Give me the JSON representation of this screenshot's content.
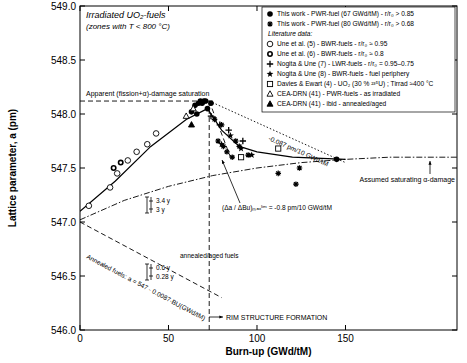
{
  "chart_data": {
    "type": "scatter",
    "x_label": "Burn-up (GWd/tM)",
    "y_label": "Lattice parameter,  a   (pm)",
    "xlim": [
      0,
      213
    ],
    "ylim": [
      546,
      549
    ],
    "xticks": [
      0,
      50,
      100,
      150
    ],
    "yticks": [
      {
        "value": 546,
        "label": "546.0"
      },
      546.5,
      {
        "value": 547,
        "label": "547.0"
      },
      547.5,
      {
        "value": 548,
        "label": "548.0"
      },
      548.5,
      {
        "value": 549,
        "label": "549.0"
      }
    ],
    "legend": "upper right",
    "legend_heading": "Literature data:",
    "series": [
      {
        "name": "This work - PWR-fuel (67 GWd/tM) - r/r₀ > 0.85",
        "color": "#000000",
        "marker": "circle",
        "x": [
          63,
          65,
          66,
          67,
          68,
          69,
          70,
          71,
          72,
          74,
          145
        ],
        "values": [
          548.02,
          548.08,
          548.0,
          548.1,
          548.12,
          548.1,
          548.12,
          548.12,
          548.05,
          548.1,
          547.58
        ]
      },
      {
        "name": "This work - PWR-fuel (80 GWd/tM) - r/r₀ > 0.68",
        "color": "#000000",
        "marker": "asterisk",
        "x": [
          76,
          78,
          80,
          81,
          83,
          86,
          88,
          90,
          95,
          112,
          122,
          124
        ],
        "values": [
          547.95,
          547.75,
          547.9,
          547.7,
          547.65,
          547.6,
          547.75,
          547.7,
          547.62,
          547.45,
          547.35,
          547.5
        ]
      },
      {
        "name": "Une et al. (5) - BWR-fuels - r/r₀ ≈ 0.95",
        "color": "#000000",
        "marker": "circle_open",
        "x": [
          5,
          17,
          21,
          27,
          32,
          38,
          43
        ],
        "values": [
          547.15,
          547.32,
          547.45,
          547.57,
          547.65,
          547.72,
          547.82
        ]
      },
      {
        "name": "Une et al. (6) - BWR-fuels - r/r₀ ≈ 0.8",
        "color": "#000000",
        "marker": "circle_dot",
        "x": [
          19,
          23
        ],
        "values": [
          547.5,
          547.55
        ]
      },
      {
        "name": "Nogita & Une (7) - LWR-fuels - r/r₀ = 0.95–0.75",
        "color": "#000000",
        "marker": "plus",
        "x": [
          74,
          79,
          84,
          92
        ],
        "values": [
          547.98,
          547.9,
          547.85,
          547.75
        ]
      },
      {
        "name": "Nogita & Une (8) - BWR-fuels - fuel periphery",
        "color": "#000000",
        "marker": "star",
        "x": [
          80,
          85,
          91,
          97
        ],
        "values": [
          547.72,
          547.8,
          547.68,
          547.62
        ]
      },
      {
        "name": "Davies & Ewart (4) - UO₂ (30 % ²³⁵U) ; Tirrad ≈400 °C",
        "color": "#000000",
        "marker": "square_open",
        "x": [
          91,
          112
        ],
        "values": [
          547.6,
          547.68
        ]
      },
      {
        "name": "CEA-DRN (41) - PWR-fuels - as irradiated",
        "color": "#000000",
        "marker": "triangle_open",
        "x": [
          60,
          64
        ],
        "values": [
          547.98,
          548.05
        ]
      },
      {
        "name": "CEA-DRN (41) - ibid - annealed/aged",
        "color": "#000000",
        "marker": "triangle",
        "x": [
          63
        ],
        "values": [
          547.9
        ]
      },
      {
        "type": "line",
        "line_style": "dashdot",
        "color": "#000000",
        "x": [
          0,
          25,
          50,
          75,
          100,
          125,
          150,
          175,
          213
        ],
        "values": [
          547.02,
          547.2,
          547.33,
          547.43,
          547.5,
          547.55,
          547.58,
          547.6,
          547.6
        ]
      },
      {
        "type": "line",
        "line_style": "solid",
        "color": "#000000",
        "x": [
          0,
          20,
          40,
          60,
          72,
          80,
          90,
          100,
          120,
          150
        ],
        "values": [
          547.1,
          547.38,
          547.7,
          547.95,
          548.05,
          547.85,
          547.7,
          547.65,
          547.6,
          547.58
        ]
      },
      {
        "type": "line",
        "line_style": "dashed",
        "color": "#000000",
        "x": [
          0,
          75
        ],
        "values": [
          548.12,
          548.12
        ]
      },
      {
        "type": "line",
        "line_style": "dashed",
        "color": "#000000",
        "x": [
          73,
          73
        ],
        "values": [
          546,
          548.12
        ]
      },
      {
        "type": "line",
        "line_style": "dotted",
        "color": "#000000",
        "x": [
          73,
          150
        ],
        "values": [
          548.12,
          547.55
        ]
      },
      {
        "type": "line",
        "line_style": "dashed",
        "color": "#000000",
        "x": [
          73,
          85
        ],
        "values": [
          548.12,
          547.6
        ]
      },
      {
        "type": "line",
        "line_style": "dashed",
        "color": "#000000",
        "x": [
          0,
          80
        ],
        "values": [
          547.0,
          546.3
        ]
      }
    ],
    "annotations": [
      "Irradiated UO₂-fuels",
      "(zones with T < 800 °C)",
      "Apparent (fission+α)-damage saturation",
      "-0.087 pm/10 GWd/tM",
      "(Δa / ΔBu)ₘₐₓˡⁱᵐ = -0.8 pm/10 GWd/tM",
      "Assumed saturating α-damage",
      "Annealed fuels: a = 547 - 0.0087·BU(GWd/tM)",
      "RIM STRUCTURE FORMATION",
      "3.4 y",
      "3 y",
      "0.6 y",
      "0.28 y",
      "annealed/aged fuels"
    ]
  }
}
